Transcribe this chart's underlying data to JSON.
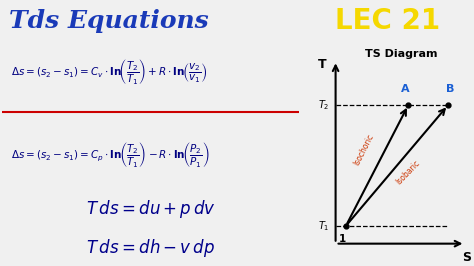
{
  "title": "Tds Equations",
  "lec_text": "LEC 21",
  "title_color": "#1a3ab8",
  "lec_bg": "#4a4a4a",
  "lec_color": "#f5d800",
  "eq_bg": "#ffffff",
  "eq_border": "#cc0000",
  "eq_text_color": "#000080",
  "bot_bg": "#c8d8e8",
  "bot_text_color": "#00008b",
  "header_bg": "#f5f5f5",
  "ts_bg": "#e0e0e0",
  "ts_title": "TS Diagram",
  "isochoric_label": "Isochoric",
  "isobaric_label": "Isobaric"
}
